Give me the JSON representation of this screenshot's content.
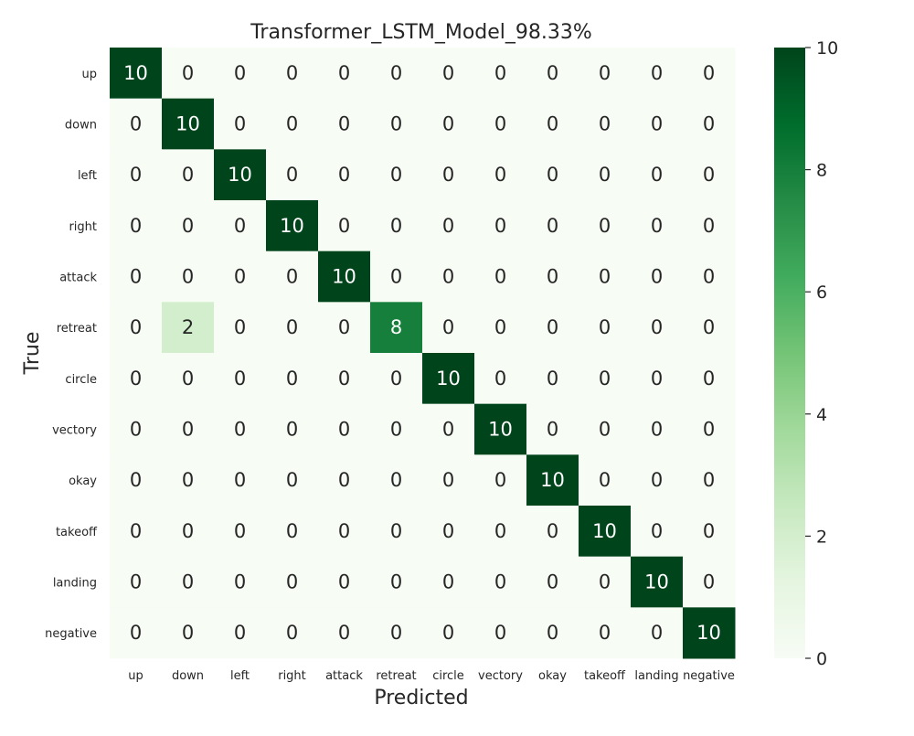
{
  "chart_data": {
    "type": "heatmap",
    "title": "Transformer_LSTM_Model_98.33%",
    "xlabel": "Predicted",
    "ylabel": "True",
    "x_categories": [
      "up",
      "down",
      "left",
      "right",
      "attack",
      "retreat",
      "circle",
      "vectory",
      "okay",
      "takeoff",
      "landing",
      "negative"
    ],
    "y_categories": [
      "up",
      "down",
      "left",
      "right",
      "attack",
      "retreat",
      "circle",
      "vectory",
      "okay",
      "takeoff",
      "landing",
      "negative"
    ],
    "values": [
      [
        10,
        0,
        0,
        0,
        0,
        0,
        0,
        0,
        0,
        0,
        0,
        0
      ],
      [
        0,
        10,
        0,
        0,
        0,
        0,
        0,
        0,
        0,
        0,
        0,
        0
      ],
      [
        0,
        0,
        10,
        0,
        0,
        0,
        0,
        0,
        0,
        0,
        0,
        0
      ],
      [
        0,
        0,
        0,
        10,
        0,
        0,
        0,
        0,
        0,
        0,
        0,
        0
      ],
      [
        0,
        0,
        0,
        0,
        10,
        0,
        0,
        0,
        0,
        0,
        0,
        0
      ],
      [
        0,
        2,
        0,
        0,
        0,
        8,
        0,
        0,
        0,
        0,
        0,
        0
      ],
      [
        0,
        0,
        0,
        0,
        0,
        0,
        10,
        0,
        0,
        0,
        0,
        0
      ],
      [
        0,
        0,
        0,
        0,
        0,
        0,
        0,
        10,
        0,
        0,
        0,
        0
      ],
      [
        0,
        0,
        0,
        0,
        0,
        0,
        0,
        0,
        10,
        0,
        0,
        0
      ],
      [
        0,
        0,
        0,
        0,
        0,
        0,
        0,
        0,
        0,
        10,
        0,
        0
      ],
      [
        0,
        0,
        0,
        0,
        0,
        0,
        0,
        0,
        0,
        0,
        10,
        0
      ],
      [
        0,
        0,
        0,
        0,
        0,
        0,
        0,
        0,
        0,
        0,
        0,
        10
      ]
    ],
    "colorbar": {
      "range": [
        0,
        10
      ],
      "ticks": [
        0,
        2,
        4,
        6,
        8,
        10
      ]
    },
    "colormap": "Greens",
    "colors": {
      "low": "#f7fcf5",
      "high": "#00441b",
      "text_dark": "#262626",
      "text_light": "#ffffff"
    },
    "grid": false
  }
}
